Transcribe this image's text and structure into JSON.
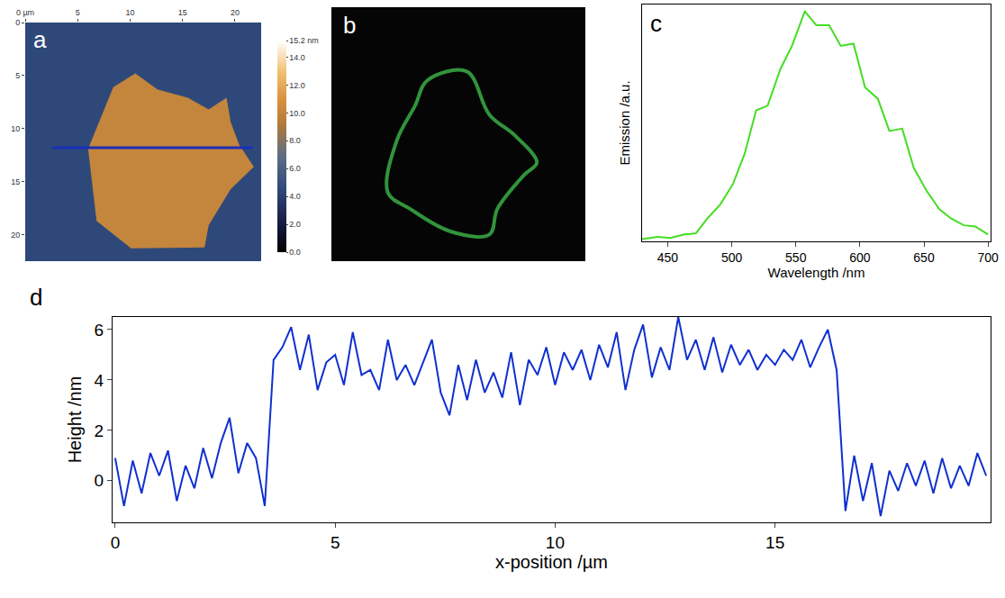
{
  "chart_data": [
    {
      "type": "image",
      "panel": "a",
      "xlim": [
        0,
        22.5
      ],
      "ylim": [
        22.5,
        0
      ],
      "xticks": [
        {
          "value": 0,
          "label": "0 µm"
        },
        5,
        10,
        15,
        20
      ],
      "yticks": [
        0,
        5,
        10,
        15,
        20
      ],
      "substrate_height": 4.5,
      "flake_height": 10,
      "flake_outline": {
        "x": [
          10.5,
          12.6,
          15.5,
          17.5,
          19.2,
          19.6,
          20.4,
          21.8,
          19.6,
          17.5,
          17.1,
          10.1,
          6.8,
          6.0,
          7.2,
          8.4
        ],
        "y": [
          4.8,
          6.3,
          7.1,
          8.2,
          7.1,
          9.4,
          11.5,
          13.6,
          15.7,
          19.1,
          21.2,
          21.3,
          18.7,
          11.9,
          9.0,
          6.1
        ]
      },
      "profile_line": {
        "x": [
          2.6,
          21.7
        ],
        "y": [
          11.8,
          11.8
        ],
        "color": "#1a2fb8"
      },
      "color_range": [
        0,
        15.2
      ],
      "color_ticks": [
        {
          "value": 0,
          "label": "0.0"
        },
        {
          "value": 2,
          "label": "2.0"
        },
        {
          "value": 4,
          "label": "4.0"
        },
        {
          "value": 6,
          "label": "6.0"
        },
        {
          "value": 8,
          "label": "8.0"
        },
        {
          "value": 10,
          "label": "10.0"
        },
        {
          "value": 12,
          "label": "12.0"
        },
        {
          "value": 14,
          "label": "14.0"
        },
        {
          "value": 15.2,
          "label": "15.2 nm"
        }
      ]
    },
    {
      "type": "image",
      "panel": "b",
      "tick_labels": false,
      "xlim": [
        0,
        22.5
      ],
      "ylim": [
        22.9,
        0
      ],
      "color": "#3cb84a",
      "emission_outline": {
        "x": [
          8.5,
          12.0,
          14.0,
          16.3,
          18.2,
          17.1,
          14.7,
          14.0,
          10.5,
          7.0,
          5.0,
          5.8,
          7.4
        ],
        "y": [
          6.6,
          5.8,
          9.7,
          11.6,
          14.0,
          15.1,
          18.2,
          20.5,
          20.2,
          18.2,
          16.7,
          12.0,
          8.9
        ]
      }
    },
    {
      "type": "line",
      "panel": "c",
      "tick_labels": "x",
      "x_label": "Wavelength /nm",
      "y_label": "Emission /a.u.",
      "color": "#44dd22",
      "x": [
        430,
        442,
        452,
        463,
        472,
        481,
        491,
        501,
        510,
        519,
        528,
        538,
        547,
        557,
        566,
        576,
        585,
        595,
        604,
        614,
        623,
        633,
        642,
        652,
        662,
        671,
        681,
        690,
        700
      ],
      "values": [
        0.01,
        0.02,
        0.015,
        0.03,
        0.035,
        0.1,
        0.16,
        0.25,
        0.38,
        0.57,
        0.59,
        0.75,
        0.85,
        1.0,
        0.94,
        0.94,
        0.85,
        0.86,
        0.67,
        0.62,
        0.48,
        0.49,
        0.32,
        0.22,
        0.14,
        0.1,
        0.07,
        0.065,
        0.03
      ],
      "xlim": [
        430,
        702
      ],
      "ylim": [
        0,
        1.03
      ],
      "xticks": [
        450,
        500,
        550,
        600,
        650,
        700
      ]
    },
    {
      "type": "line",
      "panel": "d",
      "x_label": "x-position /µm",
      "y_label": "Height /nm",
      "color": "#1030d0",
      "x": [
        0.0,
        0.2,
        0.4,
        0.6,
        0.8,
        1.0,
        1.2,
        1.4,
        1.6,
        1.8,
        2.0,
        2.2,
        2.4,
        2.6,
        2.8,
        3.0,
        3.2,
        3.4,
        3.6,
        3.8,
        4.0,
        4.2,
        4.4,
        4.6,
        4.8,
        5.0,
        5.2,
        5.4,
        5.6,
        5.8,
        6.0,
        6.2,
        6.4,
        6.6,
        6.8,
        7.0,
        7.2,
        7.4,
        7.6,
        7.8,
        8.0,
        8.2,
        8.4,
        8.6,
        8.8,
        9.0,
        9.2,
        9.4,
        9.6,
        9.8,
        10.0,
        10.2,
        10.4,
        10.6,
        10.8,
        11.0,
        11.2,
        11.4,
        11.6,
        11.8,
        12.0,
        12.2,
        12.4,
        12.6,
        12.8,
        13.0,
        13.2,
        13.4,
        13.6,
        13.8,
        14.0,
        14.2,
        14.4,
        14.6,
        14.8,
        15.0,
        15.2,
        15.4,
        15.6,
        15.8,
        16.0,
        16.2,
        16.4,
        16.6,
        16.8,
        17.0,
        17.2,
        17.4,
        17.6,
        17.8,
        18.0,
        18.2,
        18.4,
        18.6,
        18.8,
        19.0,
        19.2,
        19.4,
        19.6,
        19.8
      ],
      "values": [
        0.9,
        -1.0,
        0.8,
        -0.5,
        1.1,
        0.2,
        1.2,
        -0.8,
        0.6,
        -0.3,
        1.3,
        0.1,
        1.5,
        2.5,
        0.3,
        1.5,
        0.9,
        -1.0,
        4.8,
        5.3,
        6.1,
        4.4,
        5.8,
        3.6,
        4.7,
        5.0,
        3.8,
        5.9,
        4.2,
        4.4,
        3.6,
        5.6,
        4.0,
        4.6,
        3.8,
        4.7,
        5.6,
        3.5,
        2.6,
        4.6,
        3.2,
        4.8,
        3.5,
        4.3,
        3.3,
        5.1,
        3.0,
        4.8,
        4.2,
        5.3,
        3.8,
        5.1,
        4.4,
        5.2,
        4.0,
        5.4,
        4.5,
        5.9,
        3.6,
        5.2,
        6.2,
        4.1,
        5.3,
        4.4,
        6.5,
        4.8,
        5.6,
        4.4,
        5.7,
        4.3,
        5.4,
        4.6,
        5.2,
        4.4,
        5.0,
        4.6,
        5.2,
        4.8,
        5.6,
        4.5,
        5.3,
        6.0,
        4.4,
        -1.2,
        1.0,
        -0.8,
        0.7,
        -1.4,
        0.4,
        -0.4,
        0.7,
        -0.2,
        0.8,
        -0.5,
        0.9,
        -0.3,
        0.6,
        -0.2,
        1.1,
        0.2
      ],
      "xlim": [
        -0.06,
        19.9
      ],
      "ylim": [
        -1.65,
        6.5
      ],
      "xticks": [
        0,
        5,
        10,
        15
      ],
      "yticks": [
        0,
        2,
        4,
        6
      ]
    }
  ]
}
